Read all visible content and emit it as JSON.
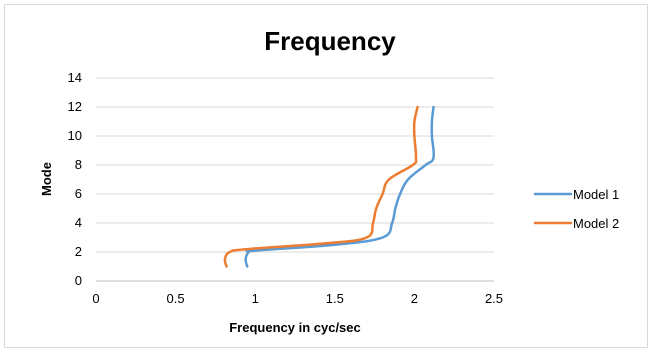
{
  "chart_data": {
    "type": "line",
    "title": "Frequency",
    "xlabel": "Frequency in cyc/sec",
    "ylabel": "Mode",
    "xlim": [
      0,
      2.5
    ],
    "ylim": [
      0,
      14
    ],
    "x_ticks": [
      "0",
      "0.5",
      "1",
      "1.5",
      "2",
      "2.5"
    ],
    "y_ticks": [
      "0",
      "2",
      "4",
      "6",
      "8",
      "10",
      "12",
      "14"
    ],
    "grid": "horizontal",
    "legend_position": "right",
    "series": [
      {
        "name": "Model 1",
        "color": "#5b9bd5",
        "x": [
          0.95,
          0.94,
          0.96,
          1.0,
          1.5,
          1.8,
          1.86,
          1.88,
          1.91,
          1.96,
          2.07,
          2.12,
          2.11,
          2.11,
          2.12
        ],
        "y": [
          1,
          1.5,
          2,
          2.1,
          2.5,
          3,
          4,
          5,
          6,
          7,
          8,
          8.5,
          10,
          11,
          12
        ]
      },
      {
        "name": "Model 2",
        "color": "#ed7d31",
        "x": [
          0.82,
          0.81,
          0.84,
          0.95,
          1.45,
          1.7,
          1.74,
          1.76,
          1.8,
          1.84,
          1.99,
          2.01,
          2.0,
          2.0,
          2.02
        ],
        "y": [
          1,
          1.5,
          2,
          2.2,
          2.6,
          3,
          4,
          5,
          6,
          7,
          8,
          8.5,
          10,
          11,
          12
        ]
      }
    ]
  }
}
